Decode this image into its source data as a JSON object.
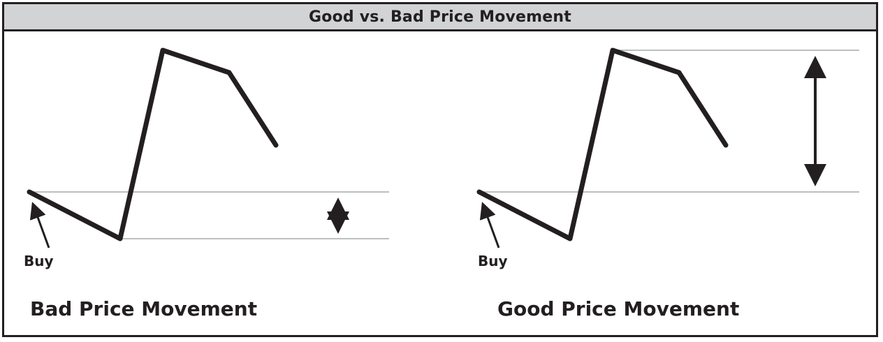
{
  "title": "Good vs. Bad Price Movement",
  "panels": [
    {
      "caption": "Bad Price Movement",
      "buy_label": "Buy"
    },
    {
      "caption": "Good Price Movement",
      "buy_label": "Buy"
    }
  ],
  "colors": {
    "line": "#231f20",
    "guide": "#bcbec0",
    "header_bg": "#d1d3d4"
  }
}
